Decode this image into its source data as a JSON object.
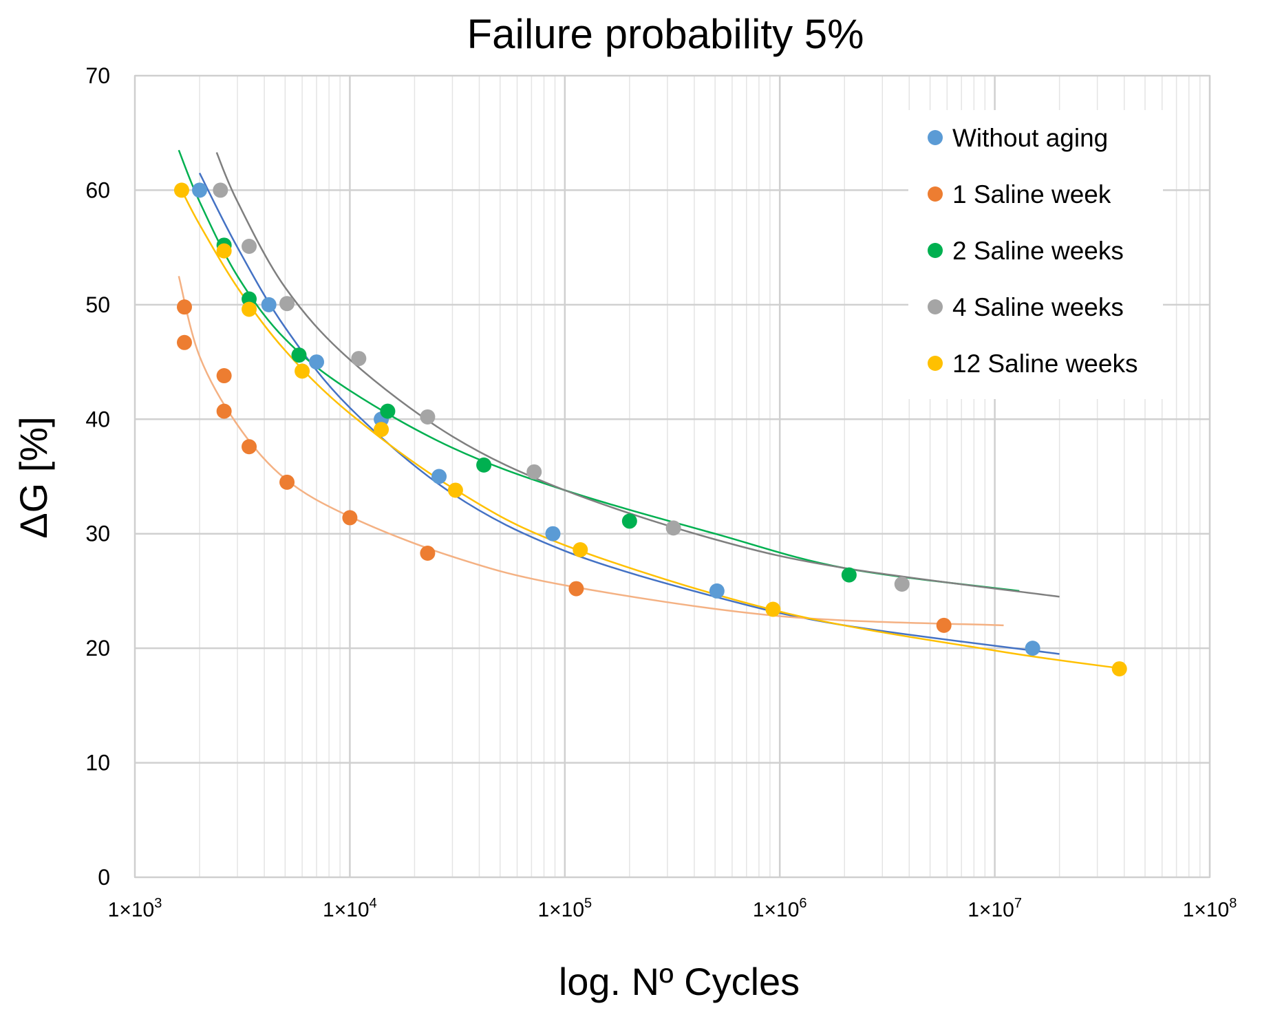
{
  "chart_data": {
    "type": "scatter",
    "title": "Failure probability 5%",
    "xlabel": "log. Nº Cycles",
    "ylabel": "ΔG [%]",
    "x_scale": "log",
    "xlim": [
      1000,
      100000000
    ],
    "ylim": [
      0,
      70
    ],
    "x_ticks": [
      1000,
      10000,
      100000,
      1000000,
      10000000,
      100000000
    ],
    "x_tick_labels": [
      {
        "base": "1×10",
        "exp": "3"
      },
      {
        "base": "1×10",
        "exp": "4"
      },
      {
        "base": "1×10",
        "exp": "5"
      },
      {
        "base": "1×10",
        "exp": "6"
      },
      {
        "base": "1×10",
        "exp": "7"
      },
      {
        "base": "1×10",
        "exp": "8"
      }
    ],
    "y_ticks": [
      0,
      10,
      20,
      30,
      40,
      50,
      60,
      70
    ],
    "y_tick_labels": [
      "0",
      "10",
      "20",
      "30",
      "40",
      "50",
      "60",
      "70"
    ],
    "grid": "on (major and minor vertical, major horizontal)",
    "legend_position": "top-right",
    "series": [
      {
        "name": "Without aging",
        "color": "#5B9BD5",
        "trend_color": "#4472C4",
        "points": [
          [
            2000,
            60
          ],
          [
            4200,
            50
          ],
          [
            7000,
            45
          ],
          [
            14000,
            40
          ],
          [
            26000,
            35
          ],
          [
            88000,
            30
          ],
          [
            510000,
            25
          ],
          [
            15000000,
            20
          ]
        ],
        "trend": [
          [
            2000,
            61.5
          ],
          [
            3000,
            55
          ],
          [
            5000,
            48
          ],
          [
            10000,
            41
          ],
          [
            30000,
            33.5
          ],
          [
            100000,
            28.5
          ],
          [
            500000,
            24.5
          ],
          [
            2000000,
            22
          ],
          [
            20000000,
            19.5
          ]
        ]
      },
      {
        "name": "1 Saline week",
        "color": "#ED7D31",
        "trend_color": "#F4B183",
        "points": [
          [
            1700,
            49.8
          ],
          [
            1700,
            46.7
          ],
          [
            2600,
            43.8
          ],
          [
            2600,
            40.7
          ],
          [
            3400,
            37.6
          ],
          [
            5100,
            34.5
          ],
          [
            10000,
            31.4
          ],
          [
            23000,
            28.3
          ],
          [
            113000,
            25.2
          ],
          [
            5800000,
            22
          ]
        ],
        "trend": [
          [
            1600,
            52.5
          ],
          [
            2000,
            45.5
          ],
          [
            3000,
            39.5
          ],
          [
            5000,
            34.8
          ],
          [
            10000,
            31.5
          ],
          [
            30000,
            28
          ],
          [
            100000,
            25.5
          ],
          [
            1000000,
            22.8
          ],
          [
            11000000,
            22
          ]
        ]
      },
      {
        "name": "2 Saline weeks",
        "color": "#00B050",
        "trend_color": "#00B050",
        "points": [
          [
            2600,
            55.2
          ],
          [
            3400,
            50.5
          ],
          [
            5800,
            45.6
          ],
          [
            15000,
            40.7
          ],
          [
            42000,
            36
          ],
          [
            200000,
            31.1
          ],
          [
            2100000,
            26.4
          ]
        ],
        "trend": [
          [
            1600,
            63.5
          ],
          [
            2000,
            59
          ],
          [
            3000,
            52.5
          ],
          [
            5000,
            47
          ],
          [
            10000,
            42.5
          ],
          [
            30000,
            37.5
          ],
          [
            100000,
            33.8
          ],
          [
            500000,
            30
          ],
          [
            2000000,
            27
          ],
          [
            13000000,
            25
          ]
        ]
      },
      {
        "name": "4 Saline weeks",
        "color": "#A5A5A5",
        "trend_color": "#7F7F7F",
        "points": [
          [
            2500,
            60
          ],
          [
            3400,
            55.1
          ],
          [
            5100,
            50.1
          ],
          [
            11000,
            45.3
          ],
          [
            23000,
            40.2
          ],
          [
            72000,
            35.4
          ],
          [
            320000,
            30.5
          ],
          [
            3700000,
            25.6
          ]
        ],
        "trend": [
          [
            2400,
            63.3
          ],
          [
            3000,
            59
          ],
          [
            5000,
            51.5
          ],
          [
            10000,
            45.2
          ],
          [
            30000,
            38.5
          ],
          [
            100000,
            33.8
          ],
          [
            500000,
            29.5
          ],
          [
            2000000,
            27
          ],
          [
            20000000,
            24.5
          ]
        ]
      },
      {
        "name": "12 Saline weeks",
        "color": "#FFC000",
        "trend_color": "#FFC000",
        "points": [
          [
            1650,
            60
          ],
          [
            2600,
            54.7
          ],
          [
            3400,
            49.6
          ],
          [
            6000,
            44.2
          ],
          [
            14000,
            39.1
          ],
          [
            31000,
            33.8
          ],
          [
            118000,
            28.6
          ],
          [
            930000,
            23.4
          ],
          [
            38000000,
            18.2
          ]
        ],
        "trend": [
          [
            1650,
            60
          ],
          [
            2000,
            57
          ],
          [
            3000,
            51.5
          ],
          [
            5000,
            46
          ],
          [
            10000,
            40.5
          ],
          [
            30000,
            34
          ],
          [
            100000,
            29
          ],
          [
            1000000,
            23.2
          ],
          [
            10000000,
            19.8
          ],
          [
            40000000,
            18.2
          ]
        ]
      }
    ]
  }
}
